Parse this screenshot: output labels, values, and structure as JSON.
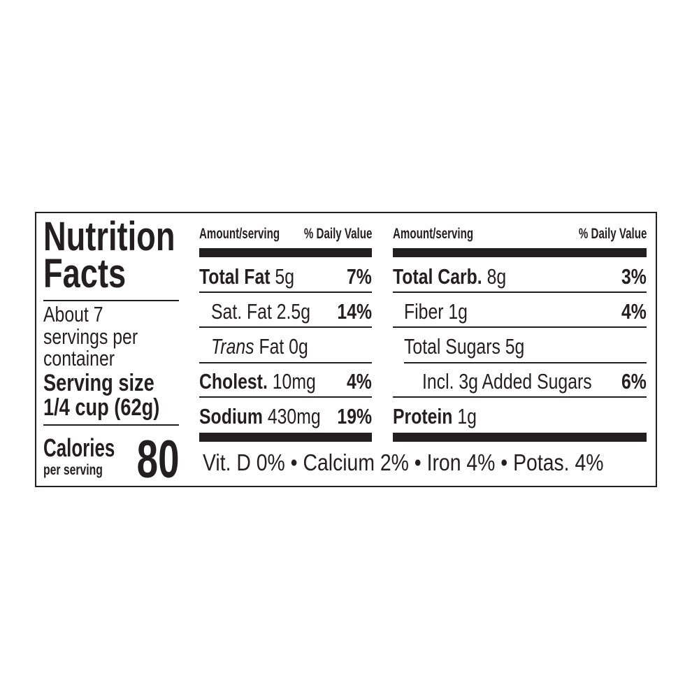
{
  "title": [
    "Nutrition",
    "Facts"
  ],
  "servings": [
    "About 7",
    "servings per",
    "container"
  ],
  "serving_size_label": "Serving size",
  "serving_size_value": "1/4 cup (62g)",
  "calories_label": "Calories",
  "calories_sub": "per serving",
  "calories_value": "80",
  "left_header": {
    "amount": "Amount/serving",
    "dv": "% Daily Value"
  },
  "right_header": {
    "amount": "Amount/serving",
    "dv": "% Daily Value"
  },
  "left_rows": [
    {
      "name": "Total Fat",
      "amount": "5g",
      "dv": "7%"
    },
    {
      "name": "Sat. Fat 2.5g",
      "dv": "14%"
    },
    {
      "name_italic": "Trans",
      "name": "Fat 0g"
    },
    {
      "name": "Cholest.",
      "amount": "10mg",
      "dv": "4%"
    },
    {
      "name": "Sodium",
      "amount": "430mg",
      "dv": "19%"
    }
  ],
  "right_rows": [
    {
      "name": "Total Carb.",
      "amount": "8g",
      "dv": "3%"
    },
    {
      "name": "Fiber 1g",
      "dv": "4%"
    },
    {
      "name": "Total Sugars 5g"
    },
    {
      "name": "Incl. 3g Added Sugars",
      "dv": "6%"
    },
    {
      "name": "Protein",
      "amount": "1g"
    }
  ],
  "vitamins": "Vit. D 0% • Calcium 2% • Iron 4% • Potas. 4%"
}
